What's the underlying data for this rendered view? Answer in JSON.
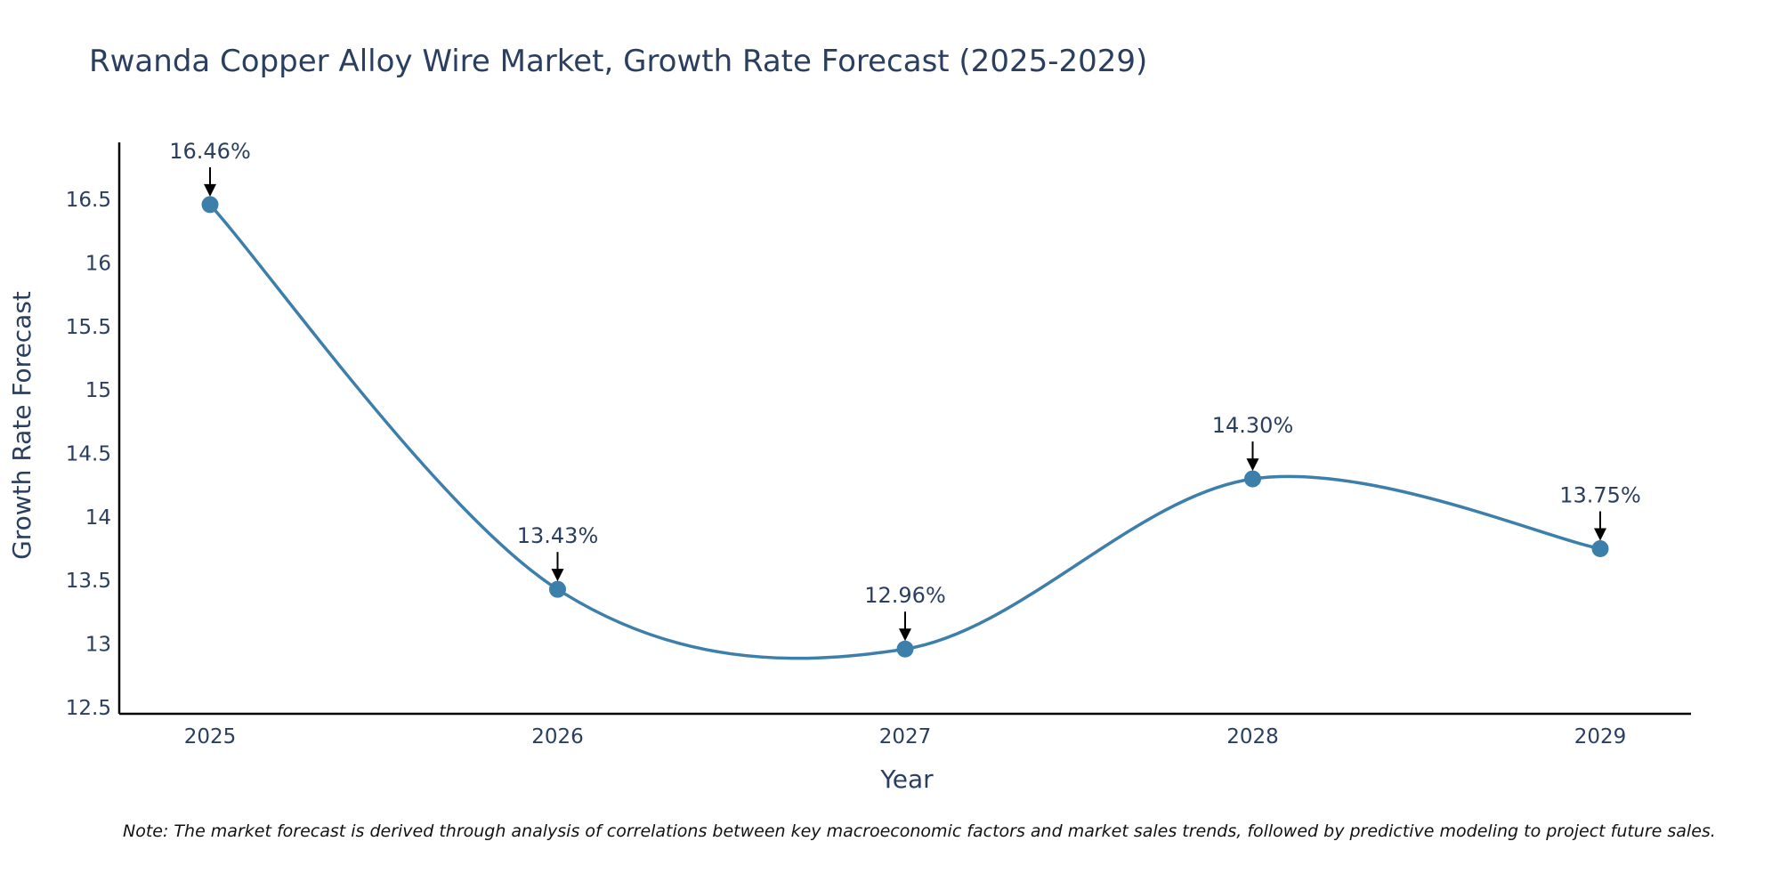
{
  "chart_data": {
    "type": "line",
    "title": "Rwanda Copper Alloy Wire Market, Growth Rate Forecast (2025-2029)",
    "xlabel": "Year",
    "ylabel": "Growth Rate Forecast",
    "categories": [
      "2025",
      "2026",
      "2027",
      "2028",
      "2029"
    ],
    "values": [
      16.46,
      13.43,
      12.96,
      14.3,
      13.75
    ],
    "data_labels": [
      "16.46%",
      "13.43%",
      "12.96%",
      "14.30%",
      "13.75%"
    ],
    "ylim": [
      12.45,
      16.95
    ],
    "yticks": [
      12.5,
      13,
      13.5,
      14,
      14.5,
      15,
      15.5,
      16,
      16.5
    ],
    "ytick_labels": [
      "12.5",
      "13",
      "13.5",
      "14",
      "14.5",
      "15",
      "15.5",
      "16",
      "16.5"
    ],
    "line_shape": "spline",
    "grid": false,
    "note": "Note: The market forecast is derived through analysis of correlations between key macroeconomic factors and market sales trends, followed by predictive modeling to project future sales."
  },
  "colors": {
    "line": "#3d7fab",
    "marker": "#3d7fab",
    "axis": "#000000",
    "text": "#2a3f5f",
    "arrow": "#000000"
  }
}
